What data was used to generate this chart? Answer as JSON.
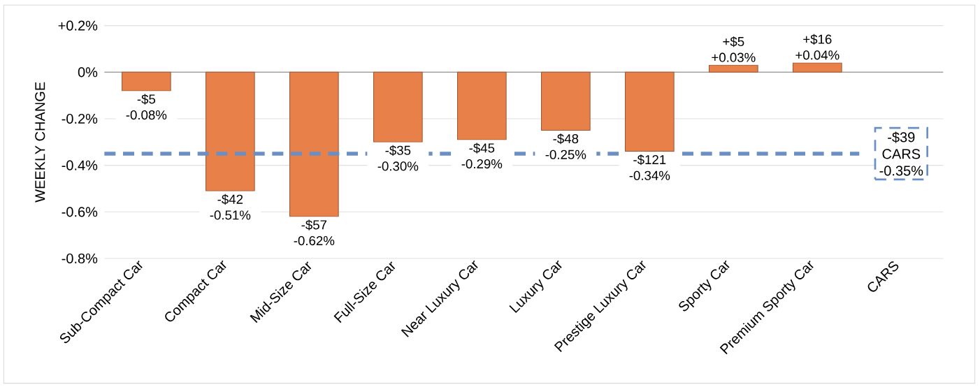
{
  "chart_data": {
    "type": "bar",
    "ylabel": "WEEKLY CHANGE",
    "categories": [
      "Sub-Compact Car",
      "Compact Car",
      "Mid-Size Car",
      "Full-Size Car",
      "Near Luxury Car",
      "Luxury Car",
      "Prestige Luxury Car",
      "Sporty Car",
      "Premium Sporty Car",
      "CARS"
    ],
    "values": [
      -0.08,
      -0.51,
      -0.62,
      -0.3,
      -0.29,
      -0.25,
      -0.34,
      0.03,
      0.04,
      null
    ],
    "value_labels": [
      "-$5 -0.08%",
      "-$42 -0.51%",
      "-$57 -0.62%",
      "-$35 -0.30%",
      "-$45 -0.29%",
      "-$48 -0.25%",
      "-$121 -0.34%",
      "+$5 +0.03%",
      "+$16 +0.04%",
      null
    ],
    "color": "#e8804a",
    "ylim": [
      -0.8,
      0.2
    ],
    "yticks": [
      {
        "value": 0.2,
        "label": "+0.2%"
      },
      {
        "value": 0,
        "label": "0%"
      },
      {
        "value": -0.2,
        "label": "-0.2%"
      },
      {
        "value": -0.4,
        "label": "-0.4%"
      },
      {
        "value": -0.6,
        "label": "-0.6%"
      },
      {
        "value": -0.8,
        "label": "-0.8%"
      }
    ],
    "grid": "y",
    "ref_lines": [
      {
        "axis": "y",
        "value": -0.35,
        "label": "-$39 CARS -0.35%",
        "color": "#6a8fc4",
        "line_style": "dashed"
      }
    ]
  }
}
